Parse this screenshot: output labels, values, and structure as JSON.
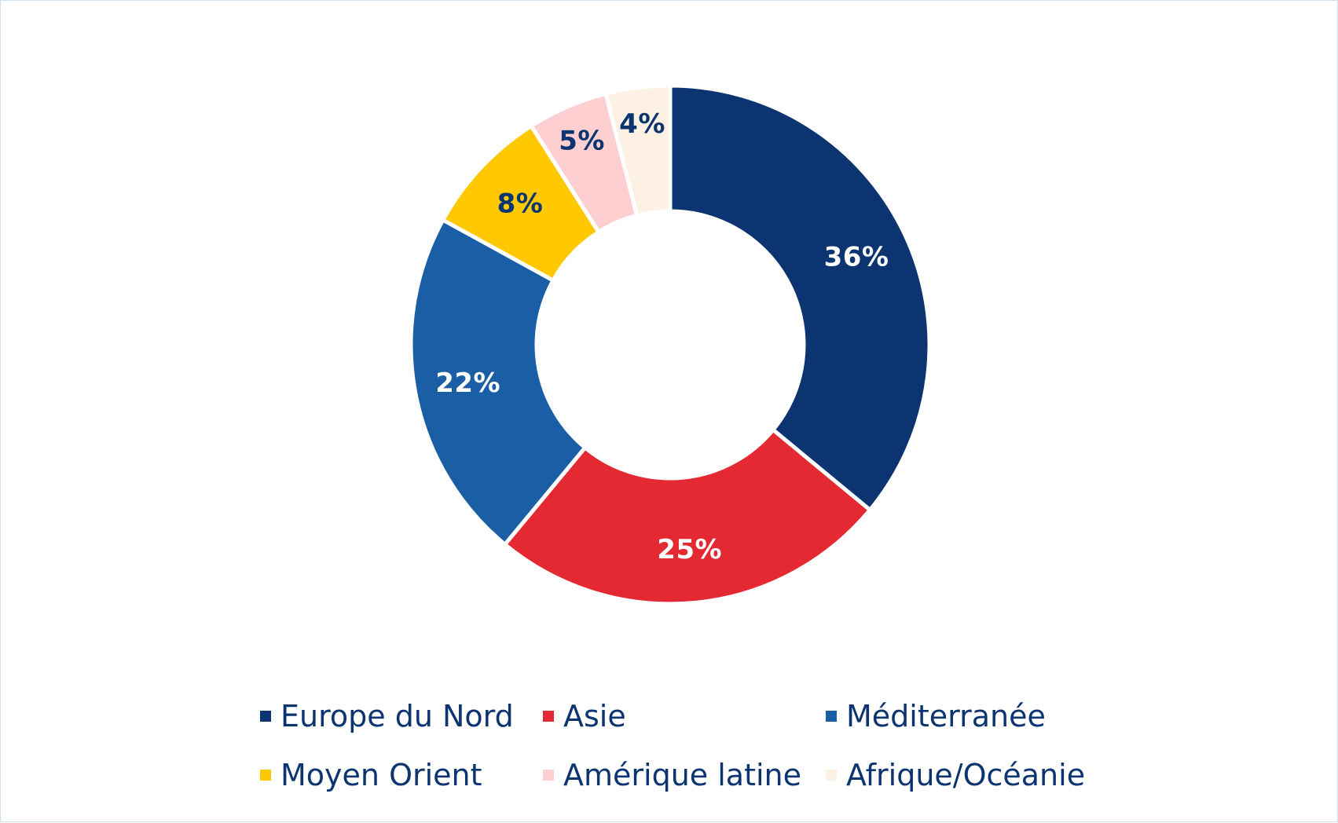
{
  "chart_data": {
    "type": "pie",
    "variant": "donut",
    "title": "",
    "start_angle_deg": 0,
    "direction": "clockwise",
    "legend_position": "bottom",
    "label_suffix": "%",
    "slices": [
      {
        "label": "Europe du Nord",
        "value": 36,
        "color": "#0b3470",
        "label_color": "#ffffff"
      },
      {
        "label": "Asie",
        "value": 25,
        "color": "#e52932",
        "label_color": "#ffffff"
      },
      {
        "label": "Méditerranée",
        "value": 22,
        "color": "#1a5fa5",
        "label_color": "#ffffff"
      },
      {
        "label": "Moyen Orient",
        "value": 8,
        "color": "#ffc800",
        "label_color": "#0b3470"
      },
      {
        "label": "Amérique latine",
        "value": 5,
        "color": "#fdcfd0",
        "label_color": "#0b3470"
      },
      {
        "label": "Afrique/Océanie",
        "value": 4,
        "color": "#fcf1e2",
        "label_color": "#0b3470"
      }
    ]
  }
}
